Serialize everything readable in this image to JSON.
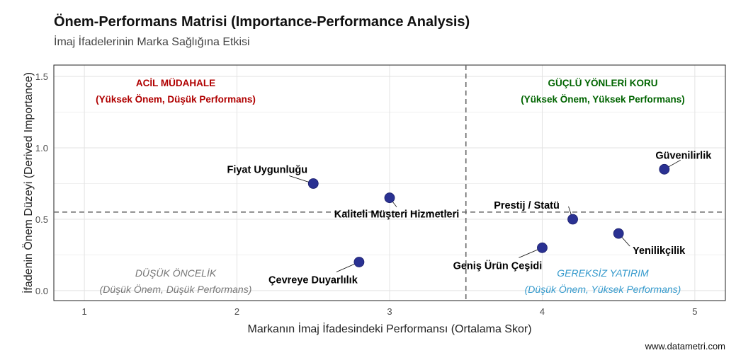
{
  "chart_data": {
    "type": "scatter",
    "title": "Önem-Performans Matrisi (Importance-Performance Analysis)",
    "subtitle": "İmaj İfadelerinin Marka Sağlığına Etkisi",
    "xlabel": "Markanın İmaj İfadesindeki Performansı (Ortalama Skor)",
    "ylabel": "İfadenin Önem Düzeyi (Derived Importance)",
    "caption": "www.datametri.com",
    "xlim": [
      0.8,
      5.2
    ],
    "ylim": [
      -0.07,
      1.58
    ],
    "xticks": [
      1,
      2,
      3,
      4,
      5
    ],
    "yticks": [
      0.0,
      0.5,
      1.0,
      1.5
    ],
    "ytick_labels": [
      "0.0",
      "0.5",
      "1.0",
      "1.5"
    ],
    "grid": true,
    "point_color": "#2a3192",
    "vline": 3.5,
    "hline": 0.55,
    "points": [
      {
        "label": "Fiyat Uygunluğu",
        "x": 2.5,
        "y": 0.75
      },
      {
        "label": "Kaliteli Müşteri Hizmetleri",
        "x": 3.0,
        "y": 0.65
      },
      {
        "label": "Çevreye Duyarlılık",
        "x": 2.8,
        "y": 0.2
      },
      {
        "label": "Güvenilirlik",
        "x": 4.8,
        "y": 0.85
      },
      {
        "label": "Prestij / Statü",
        "x": 4.2,
        "y": 0.5
      },
      {
        "label": "Yenilikçilik",
        "x": 4.5,
        "y": 0.4
      },
      {
        "label": "Geniş Ürün Çeşidi",
        "x": 4.0,
        "y": 0.3
      }
    ],
    "quadrants": [
      {
        "title": "ACİL MÜDAHALE",
        "sub": "(Yüksek Önem, Düşük Performans)",
        "color": "#b00000",
        "style": "bold"
      },
      {
        "title": "GÜÇLÜ YÖNLERİ KORU",
        "sub": "(Yüksek Önem, Yüksek Performans)",
        "color": "#006400",
        "style": "bold"
      },
      {
        "title": "DÜŞÜK ÖNCELİK",
        "sub": "(Düşük Önem, Düşük Performans)",
        "color": "#777777",
        "style": "italic"
      },
      {
        "title": "GEREKSİZ YATIRIM",
        "sub": "(Düşük Önem, Yüksek Performans)",
        "color": "#3399cc",
        "style": "italic"
      }
    ]
  }
}
